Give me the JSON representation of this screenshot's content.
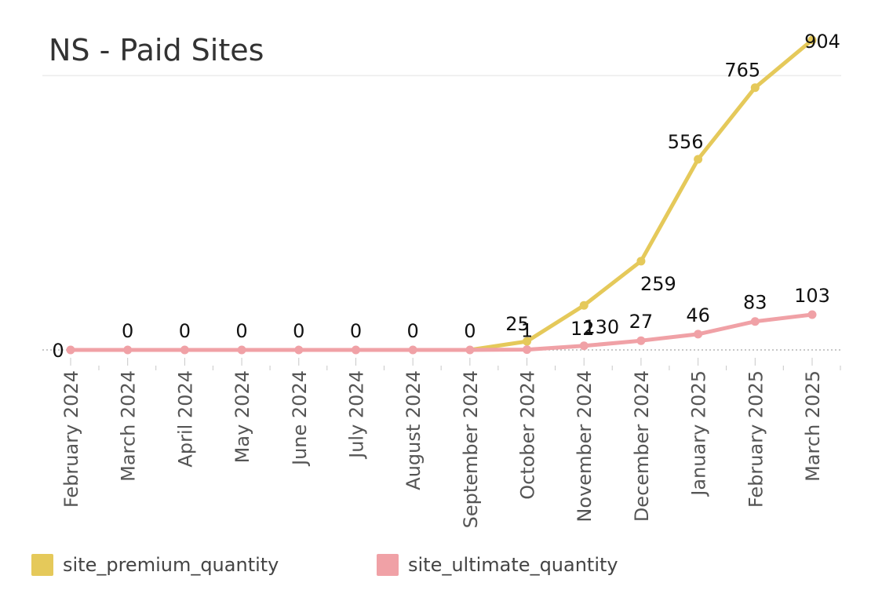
{
  "chart_data": {
    "type": "line",
    "title": "NS - Paid Sites",
    "categories": [
      "February 2024",
      "March 2024",
      "April 2024",
      "May 2024",
      "June 2024",
      "July 2024",
      "August 2024",
      "September 2024",
      "October 2024",
      "November 2024",
      "December 2024",
      "January 2025",
      "February 2025",
      "March 2025"
    ],
    "series": [
      {
        "name": "site_premium_quantity",
        "color": "#e5c95a",
        "values": [
          0,
          0,
          0,
          0,
          0,
          0,
          0,
          0,
          25,
          130,
          259,
          556,
          765,
          904
        ],
        "labels": [
          "",
          "",
          "",
          "",
          "",
          "",
          "",
          "",
          "25",
          "130",
          "259",
          "556",
          "765",
          "904"
        ]
      },
      {
        "name": "site_ultimate_quantity",
        "color": "#f0a1a6",
        "values": [
          0,
          0,
          0,
          0,
          0,
          0,
          0,
          0,
          1,
          12,
          27,
          46,
          83,
          103
        ],
        "labels": [
          "0",
          "0",
          "0",
          "0",
          "0",
          "0",
          "0",
          "0",
          "1",
          "12",
          "27",
          "46",
          "83",
          "103"
        ]
      }
    ],
    "ylim": [
      0,
      1000
    ],
    "gridlines": [
      800
    ],
    "zero_line": "dotted",
    "xlabel": "",
    "ylabel": "",
    "grid": true,
    "legend": "bottom-left"
  }
}
